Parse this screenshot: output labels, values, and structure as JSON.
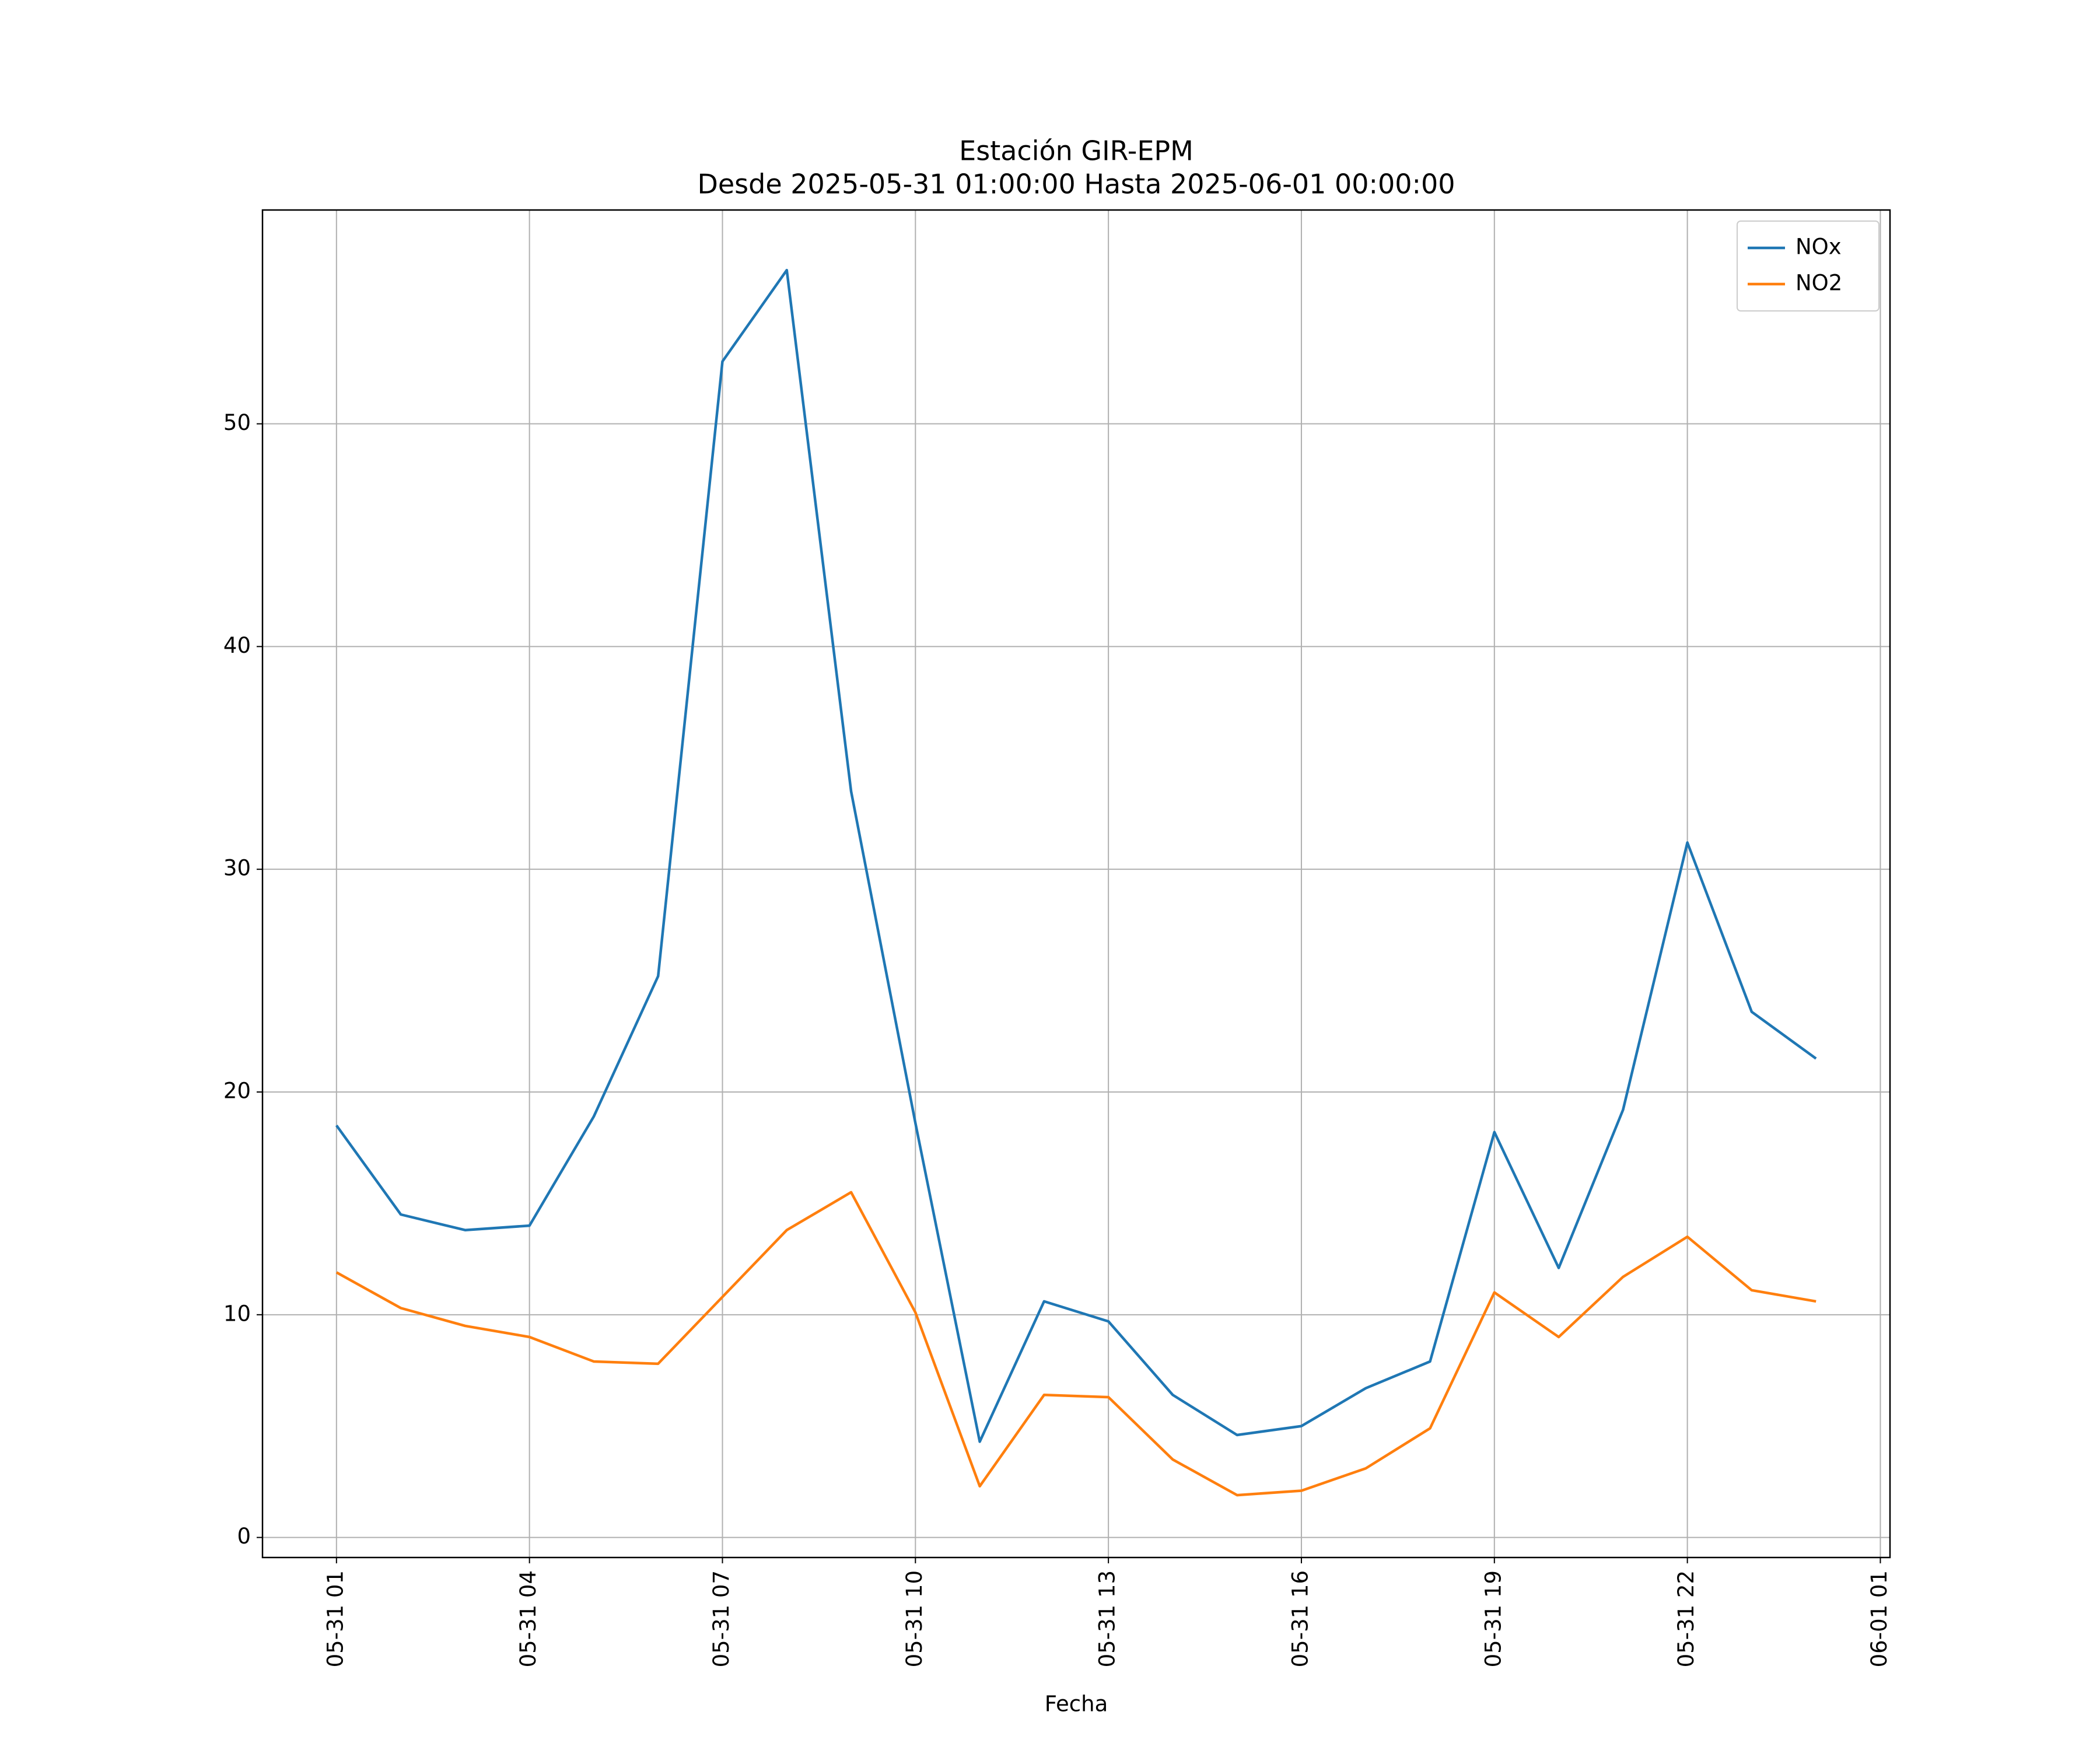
{
  "chart_data": {
    "type": "line",
    "title": "Estación GIR-EPM",
    "subtitle": "Desde 2025-05-31 01:00:00 Hasta 2025-06-01 00:00:00",
    "x_label": "Fecha",
    "x": [
      "05-31 01",
      "05-31 02",
      "05-31 03",
      "05-31 04",
      "05-31 05",
      "05-31 06",
      "05-31 07",
      "05-31 08",
      "05-31 09",
      "05-31 10",
      "05-31 11",
      "05-31 12",
      "05-31 13",
      "05-31 14",
      "05-31 15",
      "05-31 16",
      "05-31 17",
      "05-31 18",
      "05-31 19",
      "05-31 20",
      "05-31 21",
      "05-31 22",
      "05-31 23",
      "06-01 00"
    ],
    "series": [
      {
        "name": "NOx",
        "color": "#1f77b4",
        "values": [
          18.5,
          14.5,
          13.8,
          14.0,
          18.9,
          25.2,
          52.8,
          56.9,
          33.5,
          18.6,
          4.3,
          10.6,
          9.7,
          6.4,
          4.6,
          5.0,
          6.7,
          7.9,
          18.2,
          12.1,
          19.2,
          31.2,
          23.6,
          21.5
        ]
      },
      {
        "name": "NO2",
        "color": "#ff7f0e",
        "values": [
          11.9,
          10.3,
          9.5,
          9.0,
          7.9,
          7.8,
          10.8,
          13.8,
          15.5,
          10.1,
          2.3,
          6.4,
          6.3,
          3.5,
          1.9,
          2.1,
          3.1,
          4.9,
          11.0,
          9.0,
          11.7,
          13.5,
          11.1,
          10.6
        ]
      }
    ],
    "xlim": [
      "05-30 23:51",
      "06-01 01:09"
    ],
    "xticks": [
      "05-31 01",
      "05-31 04",
      "05-31 07",
      "05-31 10",
      "05-31 13",
      "05-31 16",
      "05-31 19",
      "05-31 22",
      "06-01 01"
    ],
    "ylim": [
      -0.9,
      59.6
    ],
    "yticks": [
      0,
      10,
      20,
      30,
      40,
      50
    ],
    "grid": true,
    "legend": "upper right"
  }
}
